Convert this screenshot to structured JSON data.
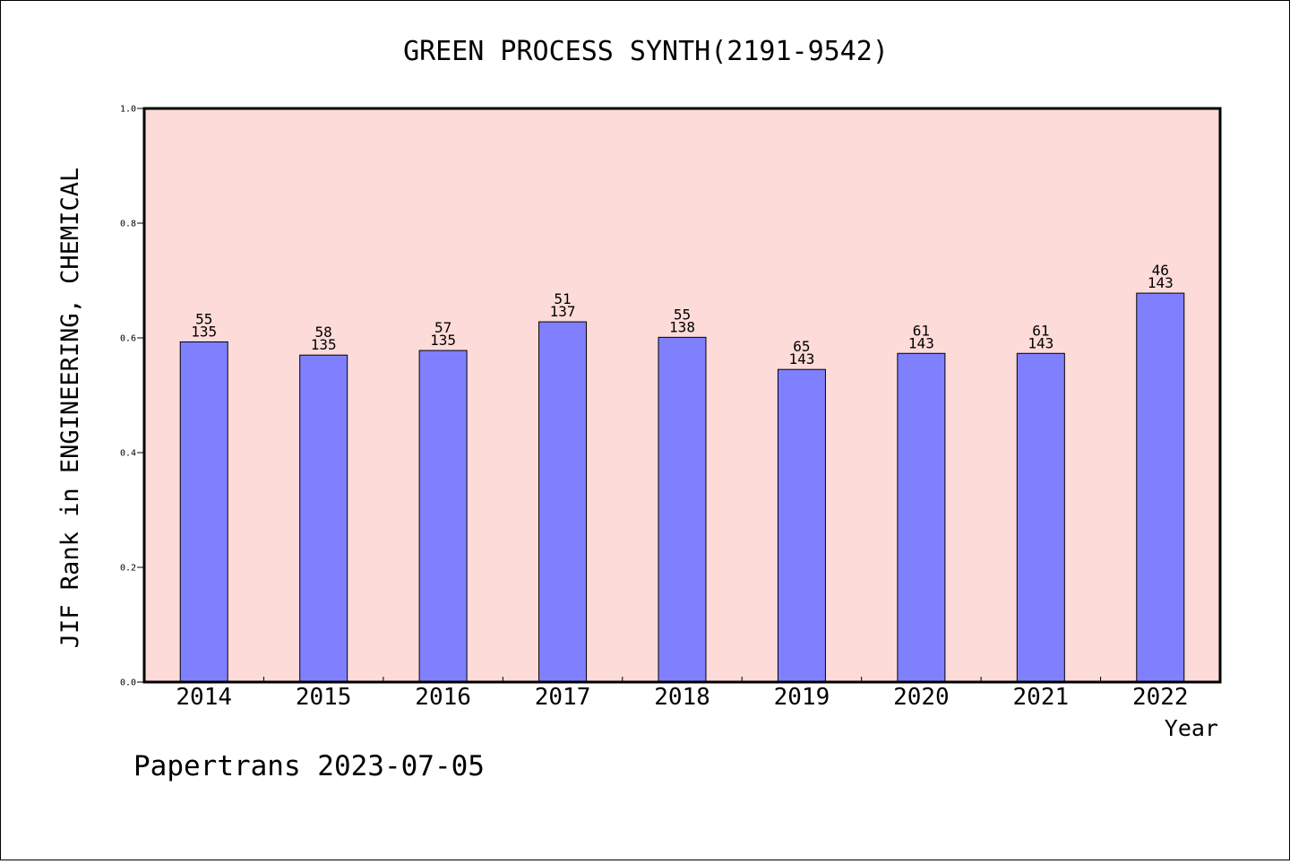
{
  "chart_data": {
    "type": "bar",
    "title": "GREEN PROCESS SYNTH(2191-9542)",
    "xlabel": "Year",
    "ylabel": "JIF Rank in ENGINEERING, CHEMICAL",
    "ylim": [
      0.0,
      1.0
    ],
    "yticks": [
      "0.0",
      "0.2",
      "0.4",
      "0.6",
      "0.8",
      "1.0"
    ],
    "categories": [
      "2014",
      "2015",
      "2016",
      "2017",
      "2018",
      "2019",
      "2020",
      "2021",
      "2022"
    ],
    "values": [
      0.593,
      0.57,
      0.578,
      0.628,
      0.601,
      0.545,
      0.573,
      0.573,
      0.678
    ],
    "rank": [
      "55",
      "58",
      "57",
      "51",
      "55",
      "65",
      "61",
      "61",
      "46"
    ],
    "total": [
      "135",
      "135",
      "135",
      "137",
      "138",
      "143",
      "143",
      "143",
      "143"
    ],
    "grid": false,
    "legend": "none",
    "colors": {
      "bar": "#8080ff",
      "bar_edge": "#000000",
      "plot_background": "#fddbd8",
      "axis": "#000000"
    }
  },
  "footer": {
    "credit": "Papertrans 2023-07-05"
  }
}
